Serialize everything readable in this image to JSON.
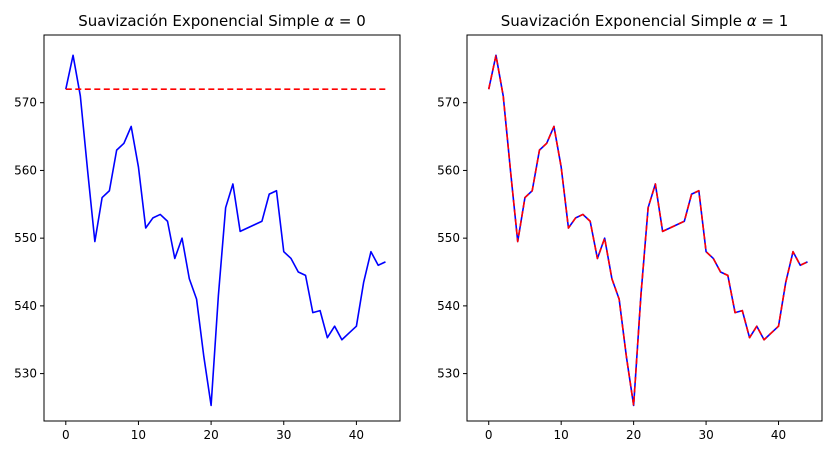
{
  "chart_data": [
    {
      "type": "line",
      "title": "Suavización Exponencial Simple α = 0",
      "title_parts": {
        "prefix": "Suavización Exponencial Simple ",
        "symbol": "α",
        "suffix": " = 0"
      },
      "xlabel": "",
      "ylabel": "",
      "xlim": [
        -3,
        46
      ],
      "ylim": [
        523,
        580
      ],
      "xticks": [
        0,
        10,
        20,
        30,
        40
      ],
      "yticks": [
        530,
        540,
        550,
        560,
        570
      ],
      "grid": false,
      "x": [
        0,
        1,
        2,
        3,
        4,
        5,
        6,
        7,
        8,
        9,
        10,
        11,
        12,
        13,
        14,
        15,
        16,
        17,
        18,
        19,
        20,
        21,
        22,
        23,
        24,
        25,
        26,
        27,
        28,
        29,
        30,
        31,
        32,
        33,
        34,
        35,
        36,
        37,
        38,
        39,
        40,
        41,
        42,
        43,
        44
      ],
      "series": [
        {
          "color": "#0000ff",
          "style": "solid",
          "values": [
            572,
            577,
            571,
            560,
            549.5,
            556,
            557,
            563,
            564,
            566.5,
            560.5,
            551.5,
            553,
            553.5,
            552.5,
            547,
            550,
            544,
            541,
            532.5,
            525.3,
            541.5,
            554.5,
            558,
            551,
            551.5,
            552,
            552.5,
            556.5,
            557,
            548,
            547,
            545,
            544.5,
            539,
            539.3,
            535.3,
            537,
            535,
            536,
            537,
            543.5,
            548,
            546,
            546.5
          ]
        },
        {
          "color": "#ff0000",
          "style": "dashed",
          "values": [
            572,
            572,
            572,
            572,
            572,
            572,
            572,
            572,
            572,
            572,
            572,
            572,
            572,
            572,
            572,
            572,
            572,
            572,
            572,
            572,
            572,
            572,
            572,
            572,
            572,
            572,
            572,
            572,
            572,
            572,
            572,
            572,
            572,
            572,
            572,
            572,
            572,
            572,
            572,
            572,
            572,
            572,
            572,
            572,
            572
          ]
        }
      ]
    },
    {
      "type": "line",
      "title": "Suavización Exponencial Simple α = 1",
      "title_parts": {
        "prefix": "Suavización Exponencial Simple ",
        "symbol": "α",
        "suffix": " = 1"
      },
      "xlabel": "",
      "ylabel": "",
      "xlim": [
        -3,
        46
      ],
      "ylim": [
        523,
        580
      ],
      "xticks": [
        0,
        10,
        20,
        30,
        40
      ],
      "yticks": [
        530,
        540,
        550,
        560,
        570
      ],
      "grid": false,
      "x": [
        0,
        1,
        2,
        3,
        4,
        5,
        6,
        7,
        8,
        9,
        10,
        11,
        12,
        13,
        14,
        15,
        16,
        17,
        18,
        19,
        20,
        21,
        22,
        23,
        24,
        25,
        26,
        27,
        28,
        29,
        30,
        31,
        32,
        33,
        34,
        35,
        36,
        37,
        38,
        39,
        40,
        41,
        42,
        43,
        44
      ],
      "series": [
        {
          "color": "#0000ff",
          "style": "solid",
          "values": [
            572,
            577,
            571,
            560,
            549.5,
            556,
            557,
            563,
            564,
            566.5,
            560.5,
            551.5,
            553,
            553.5,
            552.5,
            547,
            550,
            544,
            541,
            532.5,
            525.3,
            541.5,
            554.5,
            558,
            551,
            551.5,
            552,
            552.5,
            556.5,
            557,
            548,
            547,
            545,
            544.5,
            539,
            539.3,
            535.3,
            537,
            535,
            536,
            537,
            543.5,
            548,
            546,
            546.5
          ]
        },
        {
          "color": "#ff0000",
          "style": "dashed",
          "values": [
            572,
            577,
            571,
            560,
            549.5,
            556,
            557,
            563,
            564,
            566.5,
            560.5,
            551.5,
            553,
            553.5,
            552.5,
            547,
            550,
            544,
            541,
            532.5,
            525.3,
            541.5,
            554.5,
            558,
            551,
            551.5,
            552,
            552.5,
            556.5,
            557,
            548,
            547,
            545,
            544.5,
            539,
            539.3,
            535.3,
            537,
            535,
            536,
            537,
            543.5,
            548,
            546,
            546.5
          ]
        }
      ]
    }
  ]
}
